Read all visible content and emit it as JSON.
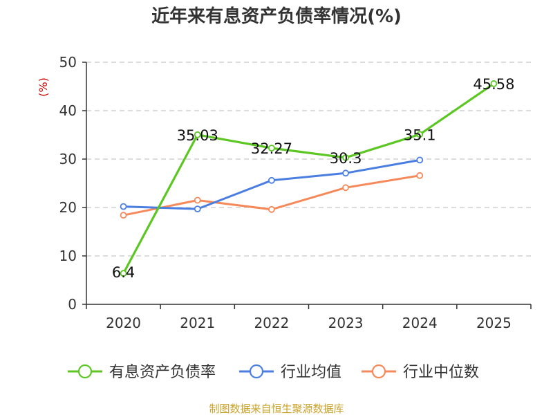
{
  "chart_data": {
    "type": "line",
    "title": "近年来有息资产负债率情况(%)",
    "ylabel": "(%)",
    "xlabel": "",
    "categories": [
      "2020",
      "2021",
      "2022",
      "2023",
      "2024",
      "2025"
    ],
    "ylim": [
      0,
      50
    ],
    "yticks": [
      0,
      10,
      20,
      30,
      40,
      50
    ],
    "grid": true,
    "legend_position": "bottom",
    "series": [
      {
        "name": "有息资产负债率",
        "color": "#5cc623",
        "values": [
          6.4,
          35.03,
          32.27,
          30.3,
          35.1,
          45.58
        ],
        "labels": [
          "6.4",
          "35.03",
          "32.27",
          "30.3",
          "35.1",
          "45.58"
        ]
      },
      {
        "name": "行业均值",
        "color": "#4a7ee0",
        "values": [
          20.2,
          19.7,
          25.6,
          27.1,
          29.8,
          null
        ]
      },
      {
        "name": "行业中位数",
        "color": "#f5895a",
        "values": [
          18.4,
          21.5,
          19.6,
          24.1,
          26.6,
          null
        ]
      }
    ]
  },
  "footer": {
    "source": "制图数据来自恒生聚源数据库",
    "source_color": "#c9a227"
  },
  "colors": {
    "ylabel": "#cc0000"
  }
}
